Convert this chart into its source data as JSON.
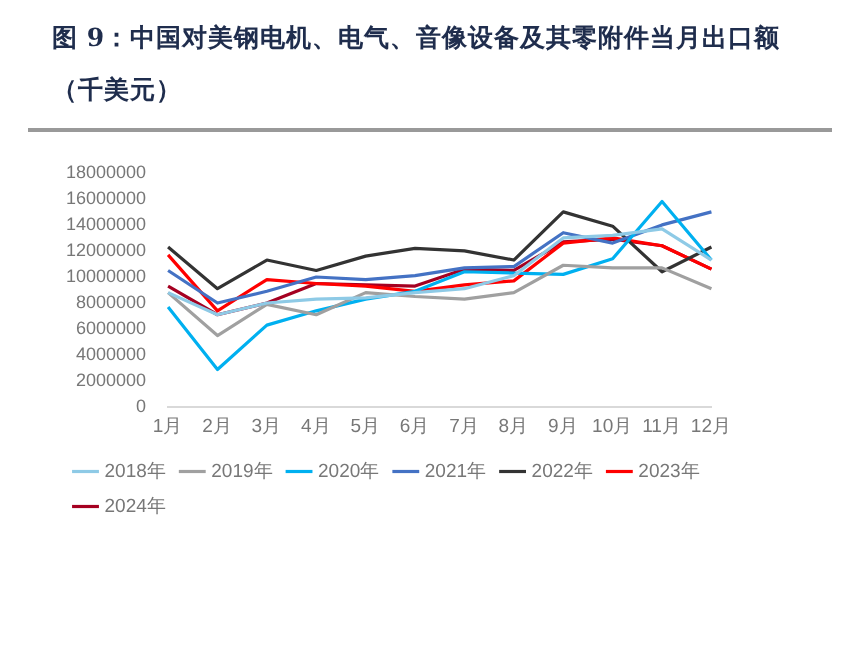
{
  "chart_data": {
    "type": "line",
    "title": "图 9：中国对美钢电机、电气、音像设备及其零附件当月出口额（千美元）",
    "categories": [
      "1月",
      "2月",
      "3月",
      "4月",
      "5月",
      "6月",
      "7月",
      "8月",
      "9月",
      "10月",
      "11月",
      "12月"
    ],
    "series": [
      {
        "name": "2018年",
        "color": "#8ecae6",
        "values": [
          8800000,
          7100000,
          8000000,
          8300000,
          8400000,
          8800000,
          9100000,
          10100000,
          13000000,
          13200000,
          13700000,
          11300000
        ]
      },
      {
        "name": "2019年",
        "color": "#a0a0a0",
        "values": [
          8800000,
          5500000,
          7900000,
          7100000,
          8800000,
          8500000,
          8300000,
          8800000,
          10900000,
          10700000,
          10700000,
          9100000
        ]
      },
      {
        "name": "2020年",
        "color": "#00b0f0",
        "values": [
          7700000,
          2900000,
          6300000,
          7400000,
          8300000,
          8900000,
          10400000,
          10300000,
          10200000,
          11400000,
          15800000,
          11300000
        ]
      },
      {
        "name": "2021年",
        "color": "#4472c4",
        "values": [
          10500000,
          8000000,
          8900000,
          10000000,
          9800000,
          10100000,
          10700000,
          10800000,
          13400000,
          12600000,
          14000000,
          15000000
        ]
      },
      {
        "name": "2022年",
        "color": "#333333",
        "values": [
          12300000,
          9100000,
          11300000,
          10500000,
          11600000,
          12200000,
          12000000,
          11300000,
          15000000,
          13900000,
          10400000,
          12300000
        ]
      },
      {
        "name": "2023年",
        "color": "#ff0000",
        "values": [
          11700000,
          7400000,
          9800000,
          9500000,
          9300000,
          8900000,
          9400000,
          9700000,
          12600000,
          13000000,
          12400000,
          10600000
        ]
      },
      {
        "name": "2024年",
        "color": "#a50021",
        "values": [
          9300000,
          7100000,
          8000000,
          9500000,
          9400000,
          9300000,
          10600000,
          10500000,
          12700000,
          12900000,
          12400000,
          10600000
        ]
      }
    ],
    "ylim": [
      0,
      18000000
    ],
    "yticks": [
      0,
      2000000,
      4000000,
      6000000,
      8000000,
      10000000,
      12000000,
      14000000,
      16000000,
      18000000
    ],
    "grid": false,
    "legend": "bottom",
    "marker": "none",
    "line_style": "solid"
  }
}
